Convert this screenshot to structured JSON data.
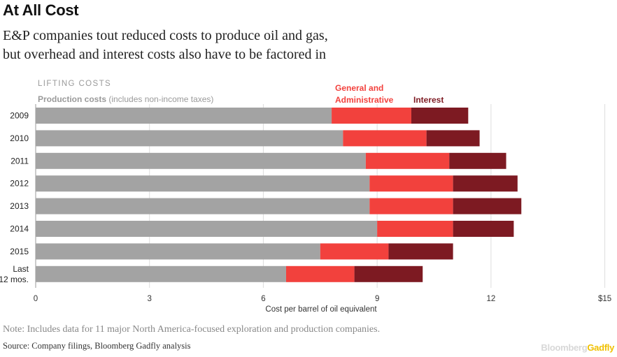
{
  "header": {
    "title": "At All Cost",
    "subtitle_line1": "E&P companies tout reduced costs to produce oil and gas,",
    "subtitle_line2": "but overhead and interest costs also have to be factored in"
  },
  "footer": {
    "note": "Note: Includes data for 11 major North America-focused exploration and production companies.",
    "source": "Source: Company filings, Bloomberg Gadfly analysis",
    "brand_part1": "Bloomberg",
    "brand_part2": "Gadfly"
  },
  "colors": {
    "production": "#a3a3a3",
    "ga": "#f2413d",
    "interest": "#7d1a22",
    "grid": "#dddddd"
  },
  "chart_data": {
    "type": "bar",
    "orientation": "horizontal",
    "stacked": true,
    "group_label": "LIFTING COSTS",
    "legend": {
      "production_bold": "Production costs",
      "production_rest": " (includes non-income taxes)",
      "ga_line1": "General and",
      "ga_line2": "Administrative",
      "interest": "Interest"
    },
    "categories": [
      "2009",
      "2010",
      "2011",
      "2012",
      "2013",
      "2014",
      "2015",
      "Last 12 mos."
    ],
    "category_lines": [
      [
        "2009"
      ],
      [
        "2010"
      ],
      [
        "2011"
      ],
      [
        "2012"
      ],
      [
        "2013"
      ],
      [
        "2014"
      ],
      [
        "2015"
      ],
      [
        "Last",
        "12 mos."
      ]
    ],
    "series": [
      {
        "name": "Production costs",
        "values": [
          7.8,
          8.1,
          8.7,
          8.8,
          8.8,
          9.0,
          7.5,
          6.6
        ]
      },
      {
        "name": "General and Administrative",
        "values": [
          2.1,
          2.2,
          2.2,
          2.2,
          2.2,
          2.0,
          1.8,
          1.8
        ]
      },
      {
        "name": "Interest",
        "values": [
          1.5,
          1.4,
          1.5,
          1.7,
          1.8,
          1.6,
          1.7,
          1.8
        ]
      }
    ],
    "xaxis": {
      "ticks": [
        0,
        3,
        6,
        9,
        12,
        15
      ],
      "tick_labels": [
        "0",
        "3",
        "6",
        "9",
        "12",
        "$15"
      ],
      "label": "Cost per barrel of oil equivalent",
      "range": [
        0,
        15.1
      ]
    },
    "grid": true
  }
}
